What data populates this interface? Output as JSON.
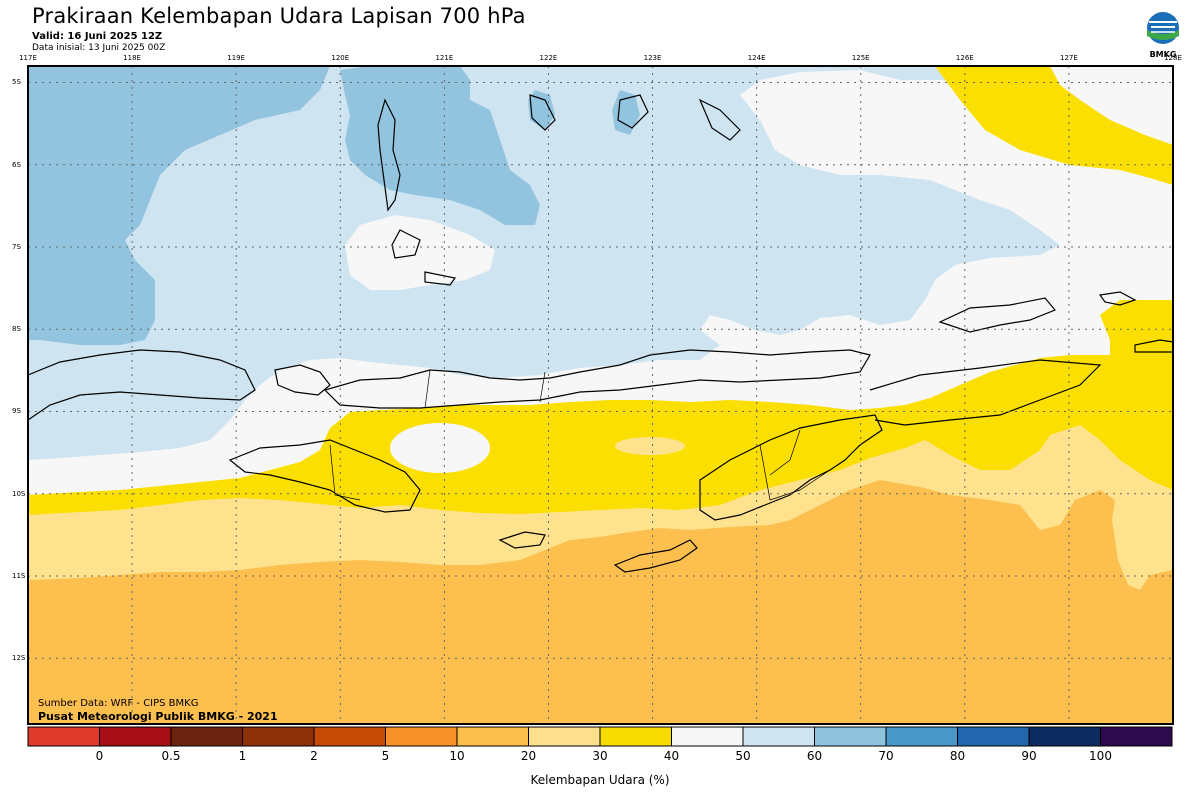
{
  "title": "Prakiraan Kelembapan Udara Lapisan 700 hPa",
  "valid": "Valid: 16 Juni 2025 12Z",
  "data_init": "Data inisial: 13 Juni 2025 00Z",
  "logo_text": "BMKG",
  "source": "Sumber Data: WRF - CIPS BMKG",
  "institution": "Pusat Meteorologi Publik BMKG - 2021",
  "map": {
    "lon_labels": [
      "117E",
      "118E",
      "119E",
      "120E",
      "121E",
      "122E",
      "123E",
      "124E",
      "125E",
      "126E",
      "127E",
      "128E"
    ],
    "lat_labels": [
      "5S",
      "6S",
      "7S",
      "8S",
      "9S",
      "10S",
      "11S",
      "12S"
    ],
    "lon_range": [
      117,
      128
    ],
    "lat_range": [
      -4.8,
      -12.8
    ],
    "grid": true
  },
  "colorbar": {
    "title": "Kelembapan Udara (%)",
    "labels": [
      "0",
      "0.5",
      "1",
      "2",
      "5",
      "10",
      "20",
      "30",
      "40",
      "50",
      "60",
      "70",
      "80",
      "90",
      "100"
    ],
    "colors": [
      "#e03a2c",
      "#a50f15",
      "#6b2410",
      "#8e3108",
      "#c44a05",
      "#f7922a",
      "#fbbf4b",
      "#fde08e",
      "#f8dc00",
      "#f7f7f7",
      "#cfe4f1",
      "#90c3de",
      "#4a98c9",
      "#2266ad",
      "#0c2b5e",
      "#2d0a4d"
    ]
  },
  "legend_colors": {
    "c20_30": "#fdc04f",
    "c30_40": "#fee28e",
    "c40_50": "#fbdf00",
    "c50_60": "#f7f7f7",
    "c60_70": "#cfe4f1",
    "c70_80": "#92c4df"
  }
}
